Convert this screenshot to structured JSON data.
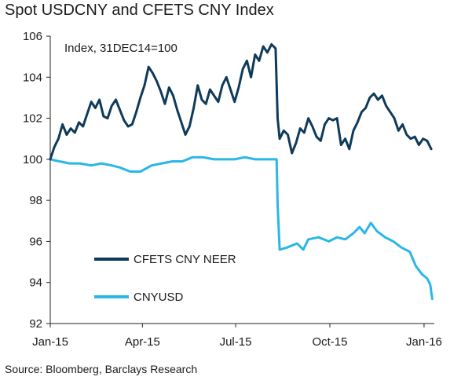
{
  "title": "Spot USDCNY and CFETS CNY Index",
  "source": "Source: Bloomberg, Barclays Research",
  "colors": {
    "neer": "#0f3a5a",
    "cnyusd": "#29b7e8",
    "axis": "#222222"
  },
  "chart_data": {
    "type": "line",
    "title": "Spot USDCNY and CFETS CNY Index",
    "annotation": "Index, 31DEC14=100",
    "ylim": [
      92,
      106
    ],
    "yticks": [
      92,
      94,
      96,
      98,
      100,
      102,
      104,
      106
    ],
    "xlim": [
      "2015-01-01",
      "2016-01-11"
    ],
    "xticks": [
      {
        "date": "2015-01-01",
        "label": "Jan-15"
      },
      {
        "date": "2015-04-01",
        "label": "Apr-15"
      },
      {
        "date": "2015-07-01",
        "label": "Jul-15"
      },
      {
        "date": "2015-10-01",
        "label": "Oct-15"
      },
      {
        "date": "2016-01-01",
        "label": "Jan-16"
      }
    ],
    "grid": false,
    "legend_position": "lower-left",
    "series": [
      {
        "name": "CFETS CNY NEER",
        "color": "#0f3a5a",
        "points": [
          [
            "2015-01-01",
            100.0
          ],
          [
            "2015-01-05",
            100.6
          ],
          [
            "2015-01-09",
            101.0
          ],
          [
            "2015-01-13",
            101.7
          ],
          [
            "2015-01-17",
            101.2
          ],
          [
            "2015-01-21",
            101.5
          ],
          [
            "2015-01-25",
            101.3
          ],
          [
            "2015-01-29",
            101.8
          ],
          [
            "2015-02-02",
            101.6
          ],
          [
            "2015-02-06",
            102.2
          ],
          [
            "2015-02-10",
            102.8
          ],
          [
            "2015-02-14",
            102.5
          ],
          [
            "2015-02-18",
            102.9
          ],
          [
            "2015-02-22",
            102.1
          ],
          [
            "2015-02-26",
            102.0
          ],
          [
            "2015-03-02",
            102.6
          ],
          [
            "2015-03-06",
            102.9
          ],
          [
            "2015-03-10",
            102.4
          ],
          [
            "2015-03-14",
            101.9
          ],
          [
            "2015-03-18",
            101.6
          ],
          [
            "2015-03-22",
            101.7
          ],
          [
            "2015-03-26",
            102.3
          ],
          [
            "2015-03-30",
            103.0
          ],
          [
            "2015-04-03",
            103.6
          ],
          [
            "2015-04-07",
            104.5
          ],
          [
            "2015-04-11",
            104.2
          ],
          [
            "2015-04-15",
            103.8
          ],
          [
            "2015-04-19",
            103.3
          ],
          [
            "2015-04-23",
            102.7
          ],
          [
            "2015-04-27",
            103.5
          ],
          [
            "2015-05-01",
            103.1
          ],
          [
            "2015-05-05",
            102.4
          ],
          [
            "2015-05-09",
            101.8
          ],
          [
            "2015-05-13",
            101.2
          ],
          [
            "2015-05-17",
            101.6
          ],
          [
            "2015-05-21",
            102.5
          ],
          [
            "2015-05-25",
            103.6
          ],
          [
            "2015-05-29",
            102.9
          ],
          [
            "2015-06-02",
            102.7
          ],
          [
            "2015-06-06",
            103.4
          ],
          [
            "2015-06-10",
            103.1
          ],
          [
            "2015-06-14",
            102.8
          ],
          [
            "2015-06-18",
            103.6
          ],
          [
            "2015-06-22",
            104.0
          ],
          [
            "2015-06-26",
            103.4
          ],
          [
            "2015-06-30",
            102.8
          ],
          [
            "2015-07-04",
            103.5
          ],
          [
            "2015-07-08",
            104.4
          ],
          [
            "2015-07-12",
            104.8
          ],
          [
            "2015-07-16",
            104.0
          ],
          [
            "2015-07-20",
            105.1
          ],
          [
            "2015-07-24",
            104.8
          ],
          [
            "2015-07-28",
            105.5
          ],
          [
            "2015-08-01",
            105.2
          ],
          [
            "2015-08-05",
            105.6
          ],
          [
            "2015-08-09",
            105.4
          ],
          [
            "2015-08-11",
            102.0
          ],
          [
            "2015-08-13",
            101.0
          ],
          [
            "2015-08-17",
            101.4
          ],
          [
            "2015-08-21",
            101.2
          ],
          [
            "2015-08-25",
            100.3
          ],
          [
            "2015-08-29",
            100.8
          ],
          [
            "2015-09-02",
            101.5
          ],
          [
            "2015-09-06",
            101.3
          ],
          [
            "2015-09-10",
            102.0
          ],
          [
            "2015-09-14",
            101.6
          ],
          [
            "2015-09-18",
            101.1
          ],
          [
            "2015-09-22",
            100.9
          ],
          [
            "2015-09-26",
            101.7
          ],
          [
            "2015-09-30",
            102.0
          ],
          [
            "2015-10-04",
            101.9
          ],
          [
            "2015-10-08",
            102.0
          ],
          [
            "2015-10-12",
            100.7
          ],
          [
            "2015-10-16",
            101.0
          ],
          [
            "2015-10-20",
            100.5
          ],
          [
            "2015-10-24",
            101.4
          ],
          [
            "2015-10-28",
            101.8
          ],
          [
            "2015-11-01",
            102.3
          ],
          [
            "2015-11-05",
            102.5
          ],
          [
            "2015-11-09",
            103.0
          ],
          [
            "2015-11-13",
            103.2
          ],
          [
            "2015-11-17",
            102.9
          ],
          [
            "2015-11-21",
            103.1
          ],
          [
            "2015-11-25",
            102.6
          ],
          [
            "2015-11-29",
            102.3
          ],
          [
            "2015-12-03",
            102.0
          ],
          [
            "2015-12-07",
            101.4
          ],
          [
            "2015-12-11",
            101.7
          ],
          [
            "2015-12-15",
            101.2
          ],
          [
            "2015-12-19",
            101.0
          ],
          [
            "2015-12-23",
            101.1
          ],
          [
            "2015-12-27",
            100.7
          ],
          [
            "2015-12-31",
            101.0
          ],
          [
            "2016-01-04",
            100.9
          ],
          [
            "2016-01-08",
            100.5
          ]
        ]
      },
      {
        "name": "CNYUSD",
        "color": "#29b7e8",
        "points": [
          [
            "2015-01-01",
            100.0
          ],
          [
            "2015-01-10",
            99.9
          ],
          [
            "2015-01-20",
            99.8
          ],
          [
            "2015-01-30",
            99.8
          ],
          [
            "2015-02-10",
            99.7
          ],
          [
            "2015-02-20",
            99.8
          ],
          [
            "2015-03-02",
            99.7
          ],
          [
            "2015-03-10",
            99.6
          ],
          [
            "2015-03-20",
            99.4
          ],
          [
            "2015-03-30",
            99.4
          ],
          [
            "2015-04-10",
            99.7
          ],
          [
            "2015-04-20",
            99.8
          ],
          [
            "2015-04-30",
            99.9
          ],
          [
            "2015-05-10",
            99.9
          ],
          [
            "2015-05-20",
            100.1
          ],
          [
            "2015-05-30",
            100.1
          ],
          [
            "2015-06-10",
            100.0
          ],
          [
            "2015-06-20",
            100.0
          ],
          [
            "2015-06-30",
            100.0
          ],
          [
            "2015-07-10",
            100.1
          ],
          [
            "2015-07-20",
            100.0
          ],
          [
            "2015-07-30",
            100.0
          ],
          [
            "2015-08-10",
            100.0
          ],
          [
            "2015-08-11",
            97.8
          ],
          [
            "2015-08-13",
            95.6
          ],
          [
            "2015-08-20",
            95.7
          ],
          [
            "2015-08-30",
            95.9
          ],
          [
            "2015-09-05",
            95.6
          ],
          [
            "2015-09-10",
            96.1
          ],
          [
            "2015-09-20",
            96.2
          ],
          [
            "2015-09-30",
            96.0
          ],
          [
            "2015-10-08",
            96.2
          ],
          [
            "2015-10-16",
            96.1
          ],
          [
            "2015-10-24",
            96.4
          ],
          [
            "2015-10-30",
            96.7
          ],
          [
            "2015-11-04",
            96.4
          ],
          [
            "2015-11-10",
            96.9
          ],
          [
            "2015-11-16",
            96.5
          ],
          [
            "2015-11-24",
            96.2
          ],
          [
            "2015-12-02",
            96.0
          ],
          [
            "2015-12-10",
            95.7
          ],
          [
            "2015-12-18",
            95.5
          ],
          [
            "2015-12-24",
            94.8
          ],
          [
            "2015-12-30",
            94.4
          ],
          [
            "2016-01-04",
            94.2
          ],
          [
            "2016-01-07",
            93.9
          ],
          [
            "2016-01-09",
            93.2
          ]
        ]
      }
    ]
  }
}
